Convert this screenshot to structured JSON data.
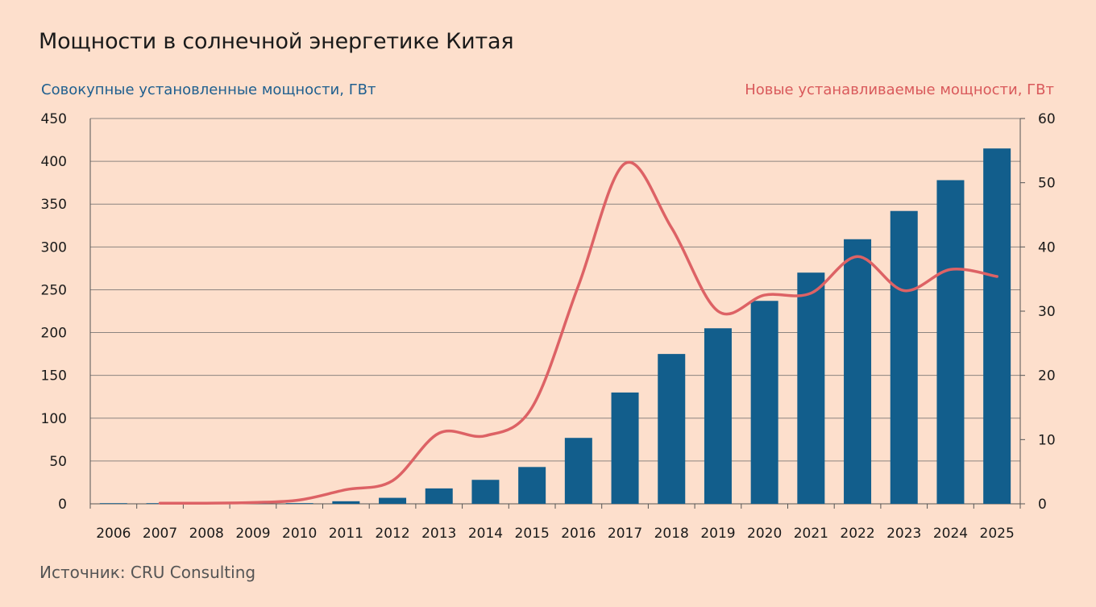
{
  "title": "Мощности в солнечной энергетике Китая",
  "source": "Источник: CRU Consulting",
  "chart_data": {
    "type": "bar",
    "categories": [
      "2006",
      "2007",
      "2008",
      "2009",
      "2010",
      "2011",
      "2012",
      "2013",
      "2014",
      "2015",
      "2016",
      "2017",
      "2018",
      "2019",
      "2020",
      "2021",
      "2022",
      "2023",
      "2024",
      "2025"
    ],
    "series": [
      {
        "name": "Совокупные установленные мощности, ГВт",
        "type": "bar",
        "axis": "left",
        "color": "#125e8c",
        "values": [
          0.1,
          0.1,
          0.2,
          0.3,
          0.8,
          3,
          7,
          18,
          28,
          43,
          77,
          130,
          175,
          205,
          237,
          270,
          309,
          342,
          378,
          415
        ]
      },
      {
        "name": "Новые устанавливаемые мощности, ГВт",
        "type": "line",
        "axis": "right",
        "color": "#dd6265",
        "values": [
          null,
          0.1,
          0.1,
          0.2,
          0.6,
          2.2,
          3.6,
          11.0,
          10.6,
          15.0,
          34.0,
          53.0,
          43.0,
          30.0,
          32.5,
          32.8,
          38.5,
          33.2,
          36.5,
          35.4
        ]
      }
    ],
    "yleft": {
      "label": "Совокупные установленные мощности, ГВт",
      "min": 0,
      "max": 450,
      "ticks": [
        0,
        50,
        100,
        150,
        200,
        250,
        300,
        350,
        400,
        450
      ]
    },
    "yright": {
      "label": "Новые устанавливаемые мощности, ГВт",
      "min": 0,
      "max": 60,
      "ticks": [
        0,
        10,
        20,
        30,
        40,
        50,
        60
      ]
    },
    "grid": true,
    "legend": "none"
  }
}
